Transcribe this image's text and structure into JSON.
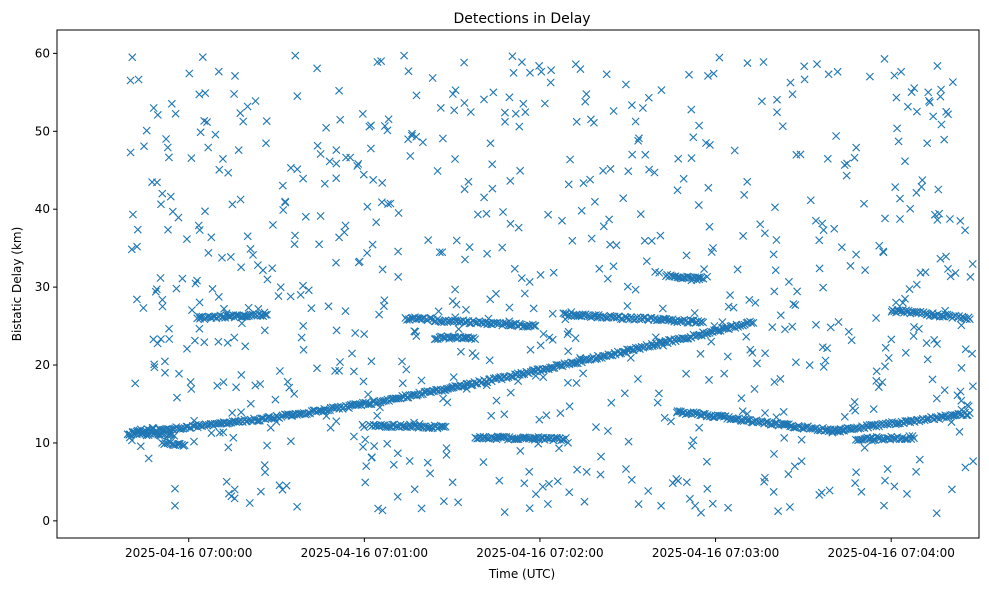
{
  "chart_data": {
    "type": "scatter",
    "title": "Detections in Delay",
    "xlabel": "Time (UTC)",
    "ylabel": "Bistatic Delay (km)",
    "marker": "x",
    "color": "#1f77b4",
    "grid": false,
    "x_axis": "time",
    "xlim": [
      "2025-04-16 06:59:15",
      "2025-04-16 07:04:30"
    ],
    "ylim": [
      -2.2,
      63
    ],
    "xticks": [
      "2025-04-16 07:00:00",
      "2025-04-16 07:01:00",
      "2025-04-16 07:02:00",
      "2025-04-16 07:03:00",
      "2025-04-16 07:04:00"
    ],
    "yticks": [
      0,
      10,
      20,
      30,
      40,
      50,
      60
    ],
    "tracks": [
      {
        "from": "2025-04-16 06:59:41",
        "to": "2025-04-16 07:03:13",
        "y_from": 11.5,
        "y_to": 25.5,
        "shape": "curve-up"
      },
      {
        "from": "2025-04-16 07:02:08",
        "to": "2025-04-16 07:02:56",
        "y_from": 26.5,
        "y_to": 25.5,
        "shape": "linear"
      },
      {
        "from": "2025-04-16 07:02:47",
        "to": "2025-04-16 07:03:30",
        "y_from": 14.0,
        "y_to": 12.0,
        "shape": "linear"
      },
      {
        "from": "2025-04-16 07:03:30",
        "to": "2025-04-16 07:03:44",
        "y_from": 12.0,
        "y_to": 11.5,
        "shape": "linear"
      },
      {
        "from": "2025-04-16 07:03:40",
        "to": "2025-04-16 07:04:27",
        "y_from": 11.5,
        "y_to": 13.8,
        "shape": "linear"
      },
      {
        "from": "2025-04-16 07:00:03",
        "to": "2025-04-16 07:00:27",
        "y_from": 26.0,
        "y_to": 26.5,
        "shape": "linear"
      },
      {
        "from": "2025-04-16 07:01:14",
        "to": "2025-04-16 07:01:59",
        "y_from": 26.0,
        "y_to": 25.0,
        "shape": "linear"
      },
      {
        "from": "2025-04-16 07:01:24",
        "to": "2025-04-16 07:01:38",
        "y_from": 23.5,
        "y_to": 23.5,
        "shape": "linear"
      },
      {
        "from": "2025-04-16 07:01:02",
        "to": "2025-04-16 07:01:28",
        "y_from": 12.3,
        "y_to": 12.0,
        "shape": "linear"
      },
      {
        "from": "2025-04-16 07:04:00",
        "to": "2025-04-16 07:04:27",
        "y_from": 27.0,
        "y_to": 26.0,
        "shape": "linear"
      },
      {
        "from": "2025-04-16 06:59:39",
        "to": "2025-04-16 06:59:55",
        "y_from": 11.2,
        "y_to": 11.0,
        "shape": "linear"
      },
      {
        "from": "2025-04-16 06:59:51",
        "to": "2025-04-16 06:59:59",
        "y_from": 10.0,
        "y_to": 9.8,
        "shape": "linear"
      },
      {
        "from": "2025-04-16 07:01:38",
        "to": "2025-04-16 07:02:09",
        "y_from": 10.7,
        "y_to": 10.5,
        "shape": "linear"
      },
      {
        "from": "2025-04-16 07:03:48",
        "to": "2025-04-16 07:04:08",
        "y_from": 10.5,
        "y_to": 10.7,
        "shape": "linear"
      },
      {
        "from": "2025-04-16 07:02:43",
        "to": "2025-04-16 07:02:56",
        "y_from": 31.5,
        "y_to": 31.0,
        "shape": "linear"
      }
    ],
    "clutter_range": {
      "from": "2025-04-16 06:59:39",
      "to": "2025-04-16 07:04:28",
      "y_min": 0.8,
      "y_max": 59.8
    }
  }
}
